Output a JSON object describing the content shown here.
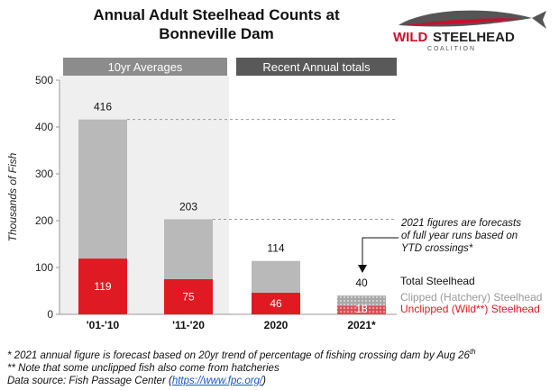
{
  "title_line1": "Annual Adult Steelhead Counts at",
  "title_line2": "Bonneville Dam",
  "logo": {
    "text_wild": "WILD",
    "text_steelhead": "STEELHEAD",
    "text_coalition": "C O A L I T I O N",
    "icon": "fish-logo-icon"
  },
  "colors": {
    "total": "#b9b9b9",
    "wild": "#e01a22",
    "header_dark": "#595959",
    "header_light": "#8c8c8c",
    "shade": "#efefef",
    "forecast_total": "#a8a8a8",
    "forecast_wild": "#e04b52"
  },
  "chart_data": {
    "type": "bar",
    "title": "Annual Adult Steelhead Counts at Bonneville Dam",
    "ylabel": "Thousands of Fish",
    "ylim": [
      0,
      500
    ],
    "yticks": [
      0,
      100,
      200,
      300,
      400,
      500
    ],
    "grid": false,
    "categories": [
      "'01-'10",
      "'11-'20",
      "2020",
      "2021*"
    ],
    "series": [
      {
        "name": "Total Steelhead",
        "values": [
          416,
          203,
          114,
          40
        ]
      },
      {
        "name": "Unclipped (Wild**) Steelhead",
        "values": [
          119,
          75,
          46,
          18
        ]
      }
    ],
    "forecast_category": "2021*",
    "group_headers": [
      "10yr Averages",
      "Recent Annual totals"
    ],
    "annotation": "2021 figures are forecasts of full year runs based on YTD crossings*",
    "legend": [
      "Total Steelhead",
      "Clipped (Hatchery) Steelhead",
      "Unclipped (Wild**) Steelhead"
    ],
    "legend_position": "right"
  },
  "annotation_lines": [
    "2021 figures are forecasts",
    "of full year runs based on",
    "YTD crossings*"
  ],
  "footnotes": {
    "line1": "* 2021 annual figure is forecast based on 20yr trend of percentage of fishing crossing dam by Aug 26",
    "line1_sup": "th",
    "line2": "** Note that some unclipped fish also come from hatcheries",
    "line3_prefix": "Data source: Fish Passage Center (",
    "line3_link": "https://www.fpc.org/",
    "line3_suffix": ")"
  }
}
